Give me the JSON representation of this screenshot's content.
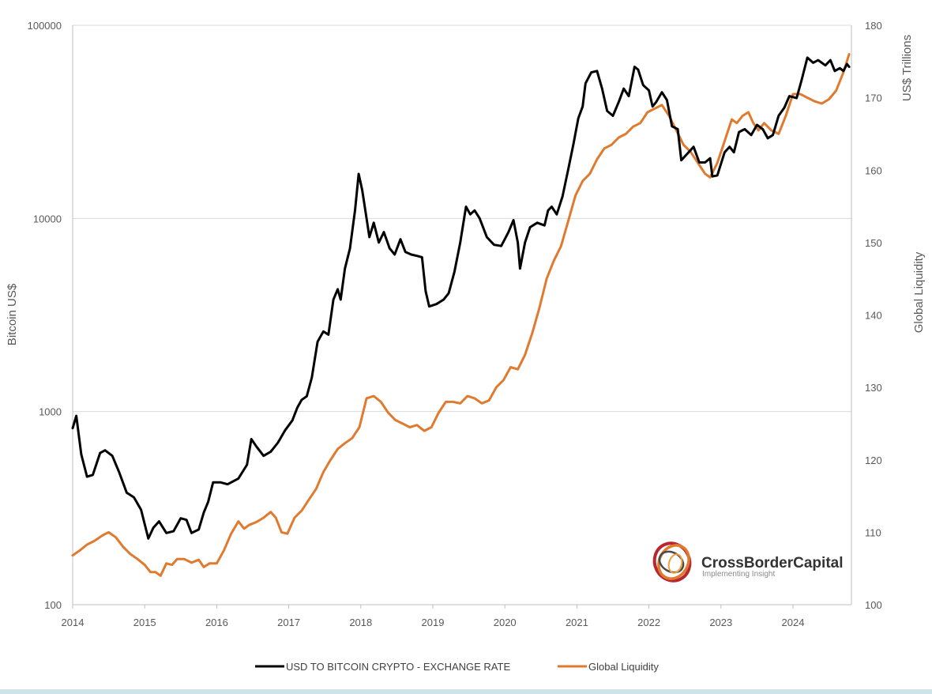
{
  "chart_data": {
    "type": "line",
    "x_ticks": [
      "2014",
      "2015",
      "2016",
      "2017",
      "2018",
      "2019",
      "2020",
      "2021",
      "2022",
      "2023",
      "2024"
    ],
    "y_left": {
      "label": "Bitcoin US$",
      "scale": "log",
      "range": [
        100,
        100000
      ],
      "ticks": [
        "100",
        "1000",
        "10000",
        "100000"
      ]
    },
    "y_right": {
      "label_top": "US$ Trillions",
      "label_middle": "Global Liquidity",
      "range": [
        100,
        180
      ],
      "ticks": [
        "100",
        "110",
        "120",
        "130",
        "140",
        "150",
        "160",
        "170",
        "180"
      ]
    },
    "grid": "horizontal at left-axis ticks",
    "legend_position": "bottom-center",
    "series": [
      {
        "name": "USD TO BITCOIN CRYPTO - EXCHANGE RATE",
        "axis": "left",
        "color": "#000000",
        "points": [
          [
            2014.0,
            820
          ],
          [
            2014.05,
            950
          ],
          [
            2014.12,
            600
          ],
          [
            2014.2,
            460
          ],
          [
            2014.28,
            470
          ],
          [
            2014.38,
            610
          ],
          [
            2014.45,
            630
          ],
          [
            2014.55,
            590
          ],
          [
            2014.65,
            480
          ],
          [
            2014.75,
            380
          ],
          [
            2014.85,
            360
          ],
          [
            2014.95,
            310
          ],
          [
            2015.05,
            220
          ],
          [
            2015.12,
            250
          ],
          [
            2015.2,
            270
          ],
          [
            2015.3,
            235
          ],
          [
            2015.4,
            240
          ],
          [
            2015.5,
            280
          ],
          [
            2015.58,
            275
          ],
          [
            2015.65,
            235
          ],
          [
            2015.75,
            245
          ],
          [
            2015.82,
            300
          ],
          [
            2015.88,
            340
          ],
          [
            2015.95,
            430
          ],
          [
            2016.05,
            430
          ],
          [
            2016.15,
            420
          ],
          [
            2016.3,
            450
          ],
          [
            2016.42,
            530
          ],
          [
            2016.48,
            720
          ],
          [
            2016.55,
            660
          ],
          [
            2016.65,
            590
          ],
          [
            2016.75,
            620
          ],
          [
            2016.85,
            690
          ],
          [
            2016.95,
            800
          ],
          [
            2017.05,
            900
          ],
          [
            2017.12,
            1050
          ],
          [
            2017.18,
            1150
          ],
          [
            2017.25,
            1200
          ],
          [
            2017.32,
            1500
          ],
          [
            2017.4,
            2300
          ],
          [
            2017.48,
            2600
          ],
          [
            2017.55,
            2500
          ],
          [
            2017.62,
            3800
          ],
          [
            2017.68,
            4300
          ],
          [
            2017.72,
            3800
          ],
          [
            2017.78,
            5500
          ],
          [
            2017.85,
            7000
          ],
          [
            2017.92,
            11000
          ],
          [
            2017.97,
            17000
          ],
          [
            2018.02,
            14000
          ],
          [
            2018.08,
            10000
          ],
          [
            2018.12,
            8000
          ],
          [
            2018.18,
            9500
          ],
          [
            2018.25,
            7500
          ],
          [
            2018.32,
            8500
          ],
          [
            2018.4,
            7000
          ],
          [
            2018.47,
            6500
          ],
          [
            2018.55,
            7800
          ],
          [
            2018.62,
            6700
          ],
          [
            2018.7,
            6500
          ],
          [
            2018.78,
            6400
          ],
          [
            2018.85,
            6300
          ],
          [
            2018.9,
            4200
          ],
          [
            2018.95,
            3500
          ],
          [
            2019.05,
            3600
          ],
          [
            2019.15,
            3800
          ],
          [
            2019.22,
            4100
          ],
          [
            2019.3,
            5300
          ],
          [
            2019.38,
            7500
          ],
          [
            2019.46,
            11500
          ],
          [
            2019.52,
            10500
          ],
          [
            2019.58,
            11000
          ],
          [
            2019.65,
            10000
          ],
          [
            2019.75,
            8000
          ],
          [
            2019.85,
            7300
          ],
          [
            2019.95,
            7200
          ],
          [
            2020.05,
            8500
          ],
          [
            2020.12,
            9800
          ],
          [
            2020.18,
            7500
          ],
          [
            2020.21,
            5500
          ],
          [
            2020.28,
            7500
          ],
          [
            2020.35,
            9000
          ],
          [
            2020.45,
            9500
          ],
          [
            2020.55,
            9200
          ],
          [
            2020.6,
            11000
          ],
          [
            2020.65,
            11500
          ],
          [
            2020.72,
            10500
          ],
          [
            2020.8,
            13000
          ],
          [
            2020.88,
            18000
          ],
          [
            2020.95,
            24000
          ],
          [
            2021.02,
            33000
          ],
          [
            2021.08,
            38000
          ],
          [
            2021.12,
            50000
          ],
          [
            2021.2,
            57000
          ],
          [
            2021.28,
            58000
          ],
          [
            2021.35,
            47000
          ],
          [
            2021.42,
            36000
          ],
          [
            2021.5,
            34000
          ],
          [
            2021.58,
            40000
          ],
          [
            2021.65,
            47000
          ],
          [
            2021.72,
            43000
          ],
          [
            2021.8,
            61000
          ],
          [
            2021.85,
            59000
          ],
          [
            2021.92,
            49000
          ],
          [
            2022.0,
            46000
          ],
          [
            2022.05,
            38000
          ],
          [
            2022.1,
            40000
          ],
          [
            2022.18,
            45000
          ],
          [
            2022.25,
            41000
          ],
          [
            2022.32,
            30000
          ],
          [
            2022.4,
            29000
          ],
          [
            2022.45,
            20000
          ],
          [
            2022.55,
            22000
          ],
          [
            2022.62,
            23500
          ],
          [
            2022.7,
            19500
          ],
          [
            2022.78,
            19500
          ],
          [
            2022.85,
            20500
          ],
          [
            2022.88,
            16500
          ],
          [
            2022.95,
            16700
          ],
          [
            2023.05,
            22000
          ],
          [
            2023.12,
            23500
          ],
          [
            2023.18,
            22000
          ],
          [
            2023.25,
            28000
          ],
          [
            2023.33,
            29000
          ],
          [
            2023.42,
            27000
          ],
          [
            2023.5,
            30500
          ],
          [
            2023.58,
            29000
          ],
          [
            2023.65,
            26000
          ],
          [
            2023.72,
            27000
          ],
          [
            2023.8,
            34000
          ],
          [
            2023.88,
            37500
          ],
          [
            2023.95,
            43000
          ],
          [
            2024.05,
            42000
          ],
          [
            2024.12,
            52000
          ],
          [
            2024.2,
            68000
          ],
          [
            2024.28,
            64000
          ],
          [
            2024.35,
            66000
          ],
          [
            2024.45,
            62000
          ],
          [
            2024.52,
            66000
          ],
          [
            2024.58,
            58000
          ],
          [
            2024.65,
            60000
          ],
          [
            2024.7,
            58000
          ],
          [
            2024.75,
            63000
          ],
          [
            2024.78,
            61000
          ]
        ]
      },
      {
        "name": "Global Liquidity",
        "axis": "right",
        "color": "#E07A2F",
        "points": [
          [
            2014.0,
            106.8
          ],
          [
            2014.1,
            107.5
          ],
          [
            2014.2,
            108.3
          ],
          [
            2014.3,
            108.8
          ],
          [
            2014.42,
            109.6
          ],
          [
            2014.5,
            110.0
          ],
          [
            2014.6,
            109.3
          ],
          [
            2014.7,
            108.0
          ],
          [
            2014.8,
            107.0
          ],
          [
            2014.9,
            106.3
          ],
          [
            2015.0,
            105.5
          ],
          [
            2015.08,
            104.5
          ],
          [
            2015.15,
            104.5
          ],
          [
            2015.22,
            104.0
          ],
          [
            2015.3,
            105.7
          ],
          [
            2015.38,
            105.5
          ],
          [
            2015.45,
            106.3
          ],
          [
            2015.55,
            106.3
          ],
          [
            2015.65,
            105.8
          ],
          [
            2015.75,
            106.2
          ],
          [
            2015.82,
            105.2
          ],
          [
            2015.9,
            105.7
          ],
          [
            2016.0,
            105.7
          ],
          [
            2016.1,
            107.5
          ],
          [
            2016.2,
            109.8
          ],
          [
            2016.3,
            111.5
          ],
          [
            2016.38,
            110.5
          ],
          [
            2016.45,
            111.0
          ],
          [
            2016.55,
            111.4
          ],
          [
            2016.65,
            112.0
          ],
          [
            2016.75,
            112.8
          ],
          [
            2016.82,
            112.0
          ],
          [
            2016.9,
            110.0
          ],
          [
            2016.98,
            109.8
          ],
          [
            2017.08,
            112.0
          ],
          [
            2017.18,
            113.0
          ],
          [
            2017.28,
            114.5
          ],
          [
            2017.38,
            116.0
          ],
          [
            2017.48,
            118.3
          ],
          [
            2017.58,
            120.0
          ],
          [
            2017.68,
            121.5
          ],
          [
            2017.78,
            122.3
          ],
          [
            2017.88,
            123.0
          ],
          [
            2017.98,
            124.5
          ],
          [
            2018.08,
            128.5
          ],
          [
            2018.18,
            128.8
          ],
          [
            2018.28,
            128.0
          ],
          [
            2018.38,
            126.5
          ],
          [
            2018.48,
            125.5
          ],
          [
            2018.58,
            125.0
          ],
          [
            2018.68,
            124.5
          ],
          [
            2018.78,
            124.8
          ],
          [
            2018.88,
            124.0
          ],
          [
            2018.98,
            124.5
          ],
          [
            2019.08,
            126.5
          ],
          [
            2019.18,
            128.0
          ],
          [
            2019.28,
            128.0
          ],
          [
            2019.38,
            127.8
          ],
          [
            2019.48,
            128.8
          ],
          [
            2019.58,
            128.5
          ],
          [
            2019.68,
            127.8
          ],
          [
            2019.78,
            128.2
          ],
          [
            2019.88,
            130.0
          ],
          [
            2019.98,
            131.0
          ],
          [
            2020.08,
            132.8
          ],
          [
            2020.18,
            132.5
          ],
          [
            2020.28,
            134.5
          ],
          [
            2020.38,
            137.5
          ],
          [
            2020.48,
            141.0
          ],
          [
            2020.58,
            145.0
          ],
          [
            2020.68,
            147.5
          ],
          [
            2020.78,
            149.5
          ],
          [
            2020.88,
            153.0
          ],
          [
            2020.98,
            156.5
          ],
          [
            2021.08,
            158.5
          ],
          [
            2021.18,
            159.5
          ],
          [
            2021.28,
            161.5
          ],
          [
            2021.38,
            163.0
          ],
          [
            2021.48,
            163.5
          ],
          [
            2021.58,
            164.5
          ],
          [
            2021.68,
            165.0
          ],
          [
            2021.78,
            166.0
          ],
          [
            2021.88,
            166.5
          ],
          [
            2021.98,
            168.0
          ],
          [
            2022.08,
            168.5
          ],
          [
            2022.18,
            169.0
          ],
          [
            2022.28,
            167.5
          ],
          [
            2022.38,
            165.5
          ],
          [
            2022.48,
            163.5
          ],
          [
            2022.58,
            162.5
          ],
          [
            2022.68,
            161.0
          ],
          [
            2022.78,
            159.5
          ],
          [
            2022.85,
            159.0
          ],
          [
            2022.95,
            161.0
          ],
          [
            2023.05,
            164.0
          ],
          [
            2023.15,
            167.0
          ],
          [
            2023.22,
            166.5
          ],
          [
            2023.3,
            167.5
          ],
          [
            2023.38,
            168.0
          ],
          [
            2023.45,
            166.5
          ],
          [
            2023.52,
            165.5
          ],
          [
            2023.6,
            166.5
          ],
          [
            2023.7,
            165.5
          ],
          [
            2023.8,
            165.0
          ],
          [
            2023.9,
            167.5
          ],
          [
            2024.0,
            170.5
          ],
          [
            2024.1,
            170.5
          ],
          [
            2024.2,
            170.0
          ],
          [
            2024.3,
            169.5
          ],
          [
            2024.4,
            169.2
          ],
          [
            2024.5,
            169.8
          ],
          [
            2024.6,
            171.0
          ],
          [
            2024.7,
            173.5
          ],
          [
            2024.78,
            176.0
          ]
        ]
      }
    ]
  },
  "logo": {
    "name": "CrossBorderCapital",
    "tagline": "Implementing Insight"
  }
}
